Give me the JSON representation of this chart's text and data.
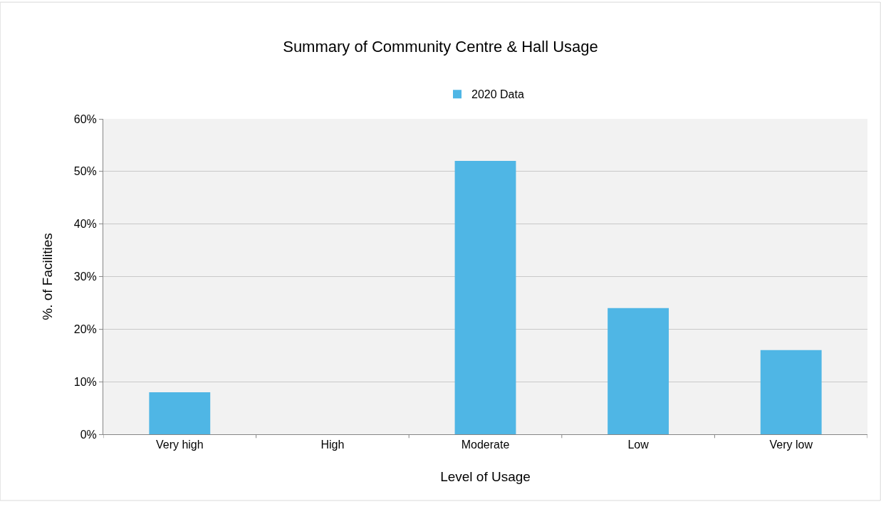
{
  "chart_data": {
    "type": "bar",
    "title": "Summary of Community Centre & Hall Usage",
    "xlabel": "Level of Usage",
    "ylabel": "%. of Facilities",
    "categories": [
      "Very high",
      "High",
      "Moderate",
      "Low",
      "Very low"
    ],
    "series": [
      {
        "name": "2020 Data",
        "color": "#4fb6e5",
        "values": [
          8,
          0,
          52,
          24,
          16
        ]
      }
    ],
    "ylim": [
      0,
      60
    ],
    "yticks": [
      {
        "value": 0,
        "label": "0%"
      },
      {
        "value": 10,
        "label": "10%"
      },
      {
        "value": 20,
        "label": "20%"
      },
      {
        "value": 30,
        "label": "30%"
      },
      {
        "value": 40,
        "label": "40%"
      },
      {
        "value": 50,
        "label": "50%"
      },
      {
        "value": 60,
        "label": "60%"
      }
    ],
    "grid": "y",
    "legend": "top"
  }
}
